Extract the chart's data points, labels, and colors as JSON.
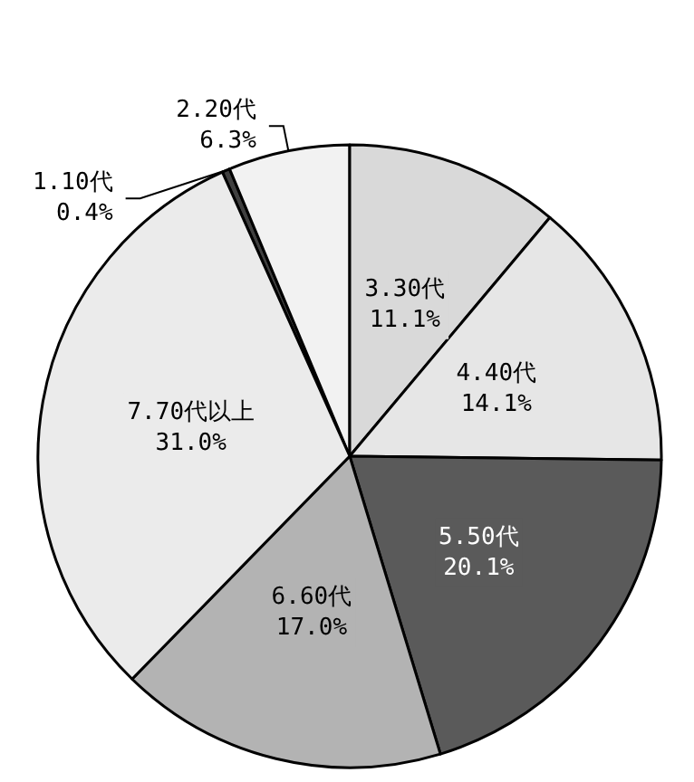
{
  "chart_data": {
    "type": "pie",
    "categories": [
      "1.10代",
      "2.20代",
      "3.30代",
      "4.40代",
      "5.50代",
      "6.60代",
      "7.70代以上"
    ],
    "values": [
      0.4,
      6.3,
      11.1,
      14.1,
      20.1,
      17.0,
      31.0
    ],
    "value_labels": [
      "0.4%",
      "6.3%",
      "11.1%",
      "14.1%",
      "20.1%",
      "17.0%",
      "31.0%"
    ],
    "colors": [
      "#404040",
      "#f2f2f2",
      "#d9d9d9",
      "#e6e6e6",
      "#5a5a5a",
      "#b3b3b3",
      "#ebebeb"
    ]
  }
}
